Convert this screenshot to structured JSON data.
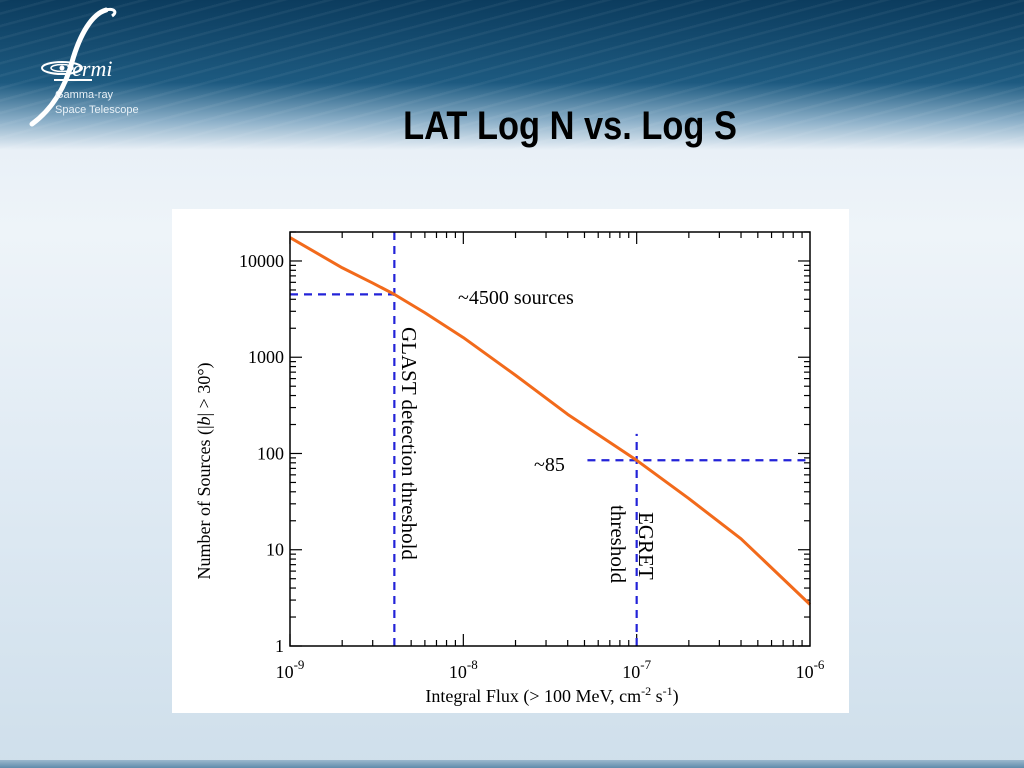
{
  "header": {
    "logo_name": "fermi",
    "logo_line1": "Gamma-ray",
    "logo_line2": "Space Telescope",
    "slide_title": "LAT Log N vs. Log S"
  },
  "chart_data": {
    "type": "line",
    "xscale": "log",
    "yscale": "log",
    "xlim": [
      1e-09,
      1e-06
    ],
    "ylim": [
      1,
      20000
    ],
    "xlabel": "Integral Flux (> 100 MeV, cm-2 s-1)",
    "ylabel": "Number of Sources (|b| > 30°)",
    "xtick_labels": [
      {
        "value": 1e-09,
        "base": "10",
        "exp": "-9"
      },
      {
        "value": 1e-08,
        "base": "10",
        "exp": "-8"
      },
      {
        "value": 1e-07,
        "base": "10",
        "exp": "-7"
      },
      {
        "value": 1e-06,
        "base": "10",
        "exp": "-6"
      }
    ],
    "ytick_labels": [
      {
        "value": 1,
        "label": "1"
      },
      {
        "value": 10,
        "label": "10"
      },
      {
        "value": 100,
        "label": "100"
      },
      {
        "value": 1000,
        "label": "1000"
      },
      {
        "value": 10000,
        "label": "10000"
      }
    ],
    "series": [
      {
        "color": "#f26a1b",
        "x": [
          1e-09,
          2e-09,
          3e-09,
          4e-09,
          6e-09,
          1e-08,
          2e-08,
          4e-08,
          1e-07,
          2e-07,
          4e-07,
          1e-06
        ],
        "y": [
          17500,
          8500,
          5900,
          4500,
          2900,
          1600,
          650,
          255,
          85,
          34,
          13,
          2.7
        ]
      }
    ],
    "reference_lines": [
      {
        "orientation": "vertical",
        "x": 4e-09,
        "color": "#2323d8",
        "style": "dashed"
      },
      {
        "orientation": "horizontal",
        "y": 4500,
        "x_to": 4e-09,
        "color": "#2323d8",
        "style": "dashed"
      },
      {
        "orientation": "vertical",
        "x": 1e-07,
        "y_from": 1,
        "y_to": 160,
        "color": "#2323d8",
        "style": "dashed"
      },
      {
        "orientation": "horizontal",
        "y": 85,
        "x_from": 5.2e-08,
        "x_to": 1e-06,
        "color": "#2323d8",
        "style": "dashed"
      }
    ],
    "annotations": {
      "sources_4500": "~4500 sources",
      "sources_85": "~85",
      "glast_threshold": "GLAST detection threshold",
      "egret_line1": "EGRET",
      "egret_line2": "threshold"
    },
    "axis_text": {
      "ylabel_part1": "Number of Sources (|",
      "ylabel_b": "b",
      "ylabel_part2": "| > 30°)",
      "xlabel_part1": "Integral Flux (> 100 MeV, cm",
      "xlabel_sup1": "-2",
      "xlabel_part2": " s",
      "xlabel_sup2": "-1",
      "xlabel_part3": ")"
    },
    "grid": false,
    "legend": "none"
  }
}
